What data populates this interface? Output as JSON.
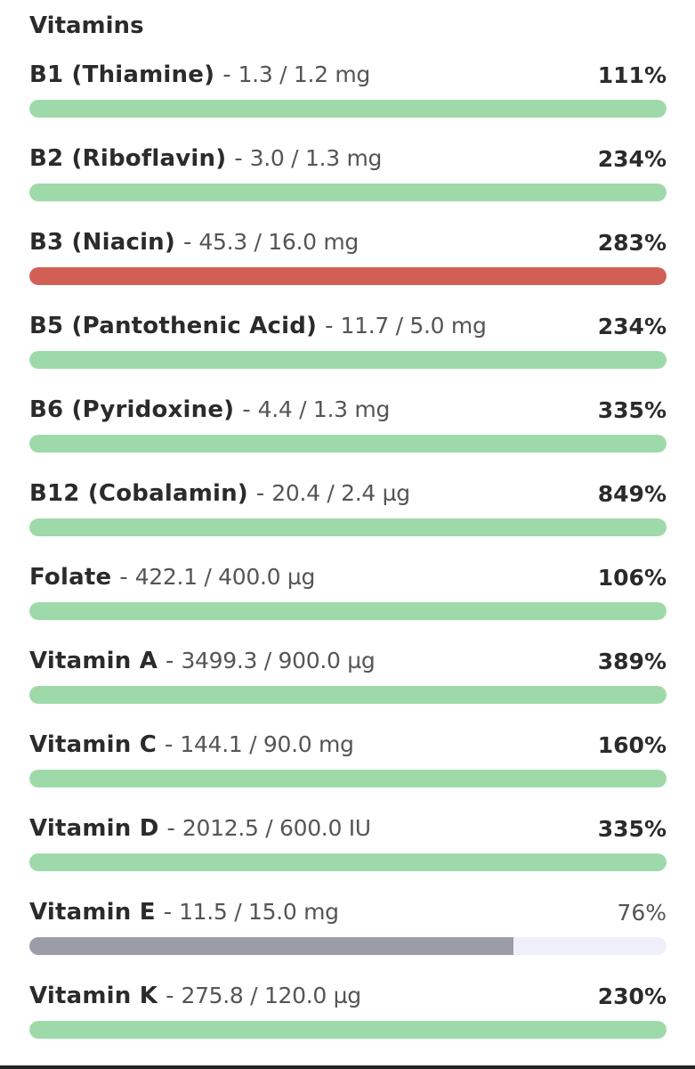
{
  "section": {
    "title": "Vitamins"
  },
  "colors": {
    "ok": "#9edaa9",
    "over": "#d15f55",
    "under": "#9a9ca8",
    "track": "#eeeff8"
  },
  "nutrients": [
    {
      "name": "B1 (Thiamine)",
      "amount": "1.3 / 1.2 mg",
      "percent": "111%",
      "progress": 1.0,
      "status": "ok"
    },
    {
      "name": "B2 (Riboflavin)",
      "amount": "3.0 / 1.3 mg",
      "percent": "234%",
      "progress": 1.0,
      "status": "ok"
    },
    {
      "name": "B3 (Niacin)",
      "amount": "45.3 / 16.0 mg",
      "percent": "283%",
      "progress": 1.0,
      "status": "over"
    },
    {
      "name": "B5 (Pantothenic Acid)",
      "amount": "11.7 / 5.0 mg",
      "percent": "234%",
      "progress": 1.0,
      "status": "ok"
    },
    {
      "name": "B6 (Pyridoxine)",
      "amount": "4.4 / 1.3 mg",
      "percent": "335%",
      "progress": 1.0,
      "status": "ok"
    },
    {
      "name": "B12 (Cobalamin)",
      "amount": "20.4 / 2.4 µg",
      "percent": "849%",
      "progress": 1.0,
      "status": "ok"
    },
    {
      "name": "Folate",
      "amount": "422.1 / 400.0 µg",
      "percent": "106%",
      "progress": 1.0,
      "status": "ok"
    },
    {
      "name": "Vitamin A",
      "amount": "3499.3 / 900.0 µg",
      "percent": "389%",
      "progress": 1.0,
      "status": "ok"
    },
    {
      "name": "Vitamin C",
      "amount": "144.1 / 90.0 mg",
      "percent": "160%",
      "progress": 1.0,
      "status": "ok"
    },
    {
      "name": "Vitamin D",
      "amount": "2012.5 / 600.0 IU",
      "percent": "335%",
      "progress": 1.0,
      "status": "ok"
    },
    {
      "name": "Vitamin E",
      "amount": "11.5 / 15.0 mg",
      "percent": "76%",
      "progress": 0.76,
      "status": "under"
    },
    {
      "name": "Vitamin K",
      "amount": "275.8 / 120.0 µg",
      "percent": "230%",
      "progress": 1.0,
      "status": "ok"
    }
  ]
}
